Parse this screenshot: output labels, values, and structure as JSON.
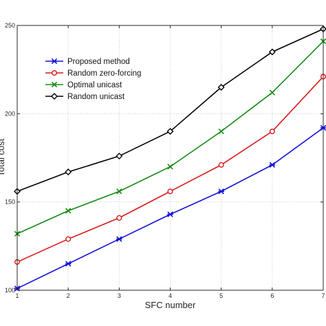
{
  "chart_data": {
    "type": "line",
    "title": "",
    "xlabel": "SFC number",
    "ylabel": "Total cost",
    "x": [
      1,
      2,
      3,
      4,
      5,
      6,
      7
    ],
    "xlim": [
      1,
      7
    ],
    "ylim": [
      100,
      250
    ],
    "xticks": [
      "1",
      "2",
      "3",
      "4",
      "5",
      "6",
      "7"
    ],
    "yticks": [
      "100",
      "150",
      "200",
      "250"
    ],
    "grid": true,
    "legend_position": "top-left",
    "series": [
      {
        "name": "Proposed method",
        "color": "#1010d8",
        "marker": "asterisk",
        "values": [
          101,
          115,
          129,
          143,
          156,
          171,
          192
        ]
      },
      {
        "name": "Random zero-forcing",
        "color": "#d81818",
        "marker": "circle",
        "values": [
          116,
          129,
          141,
          156,
          171,
          190,
          221
        ]
      },
      {
        "name": "Optimal unicast",
        "color": "#138a13",
        "marker": "x",
        "values": [
          132,
          145,
          156,
          170,
          190,
          212,
          241
        ]
      },
      {
        "name": "Random unicast",
        "color": "#000000",
        "marker": "diamond",
        "values": [
          156,
          167,
          176,
          190,
          215,
          235,
          248
        ]
      }
    ]
  }
}
